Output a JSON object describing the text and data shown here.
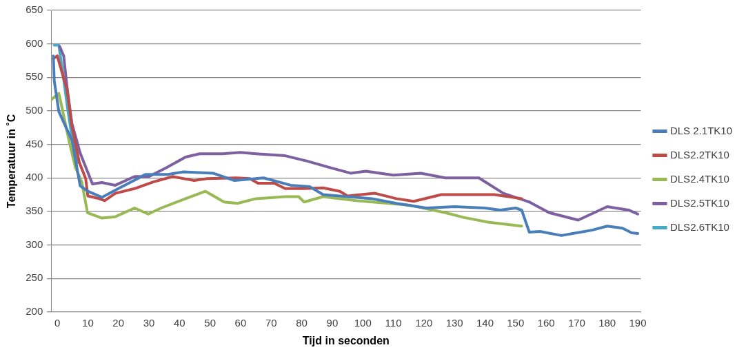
{
  "chart_data": {
    "type": "line",
    "xlabel": "Tijd in seconden",
    "ylabel": "Temperatuur in ˚C",
    "xlim": [
      -2,
      191
    ],
    "xticks": [
      0,
      10,
      20,
      30,
      40,
      50,
      60,
      70,
      80,
      90,
      100,
      110,
      120,
      130,
      140,
      150,
      160,
      170,
      180,
      190
    ],
    "ylim": [
      200,
      650
    ],
    "yticks": [
      200,
      250,
      300,
      350,
      400,
      450,
      500,
      550,
      600,
      650
    ],
    "grid": "y",
    "legend": "right",
    "marker": "none",
    "line_style": "solid",
    "series": [
      {
        "name": "DLS 2.1TK10",
        "color": "#4a7ebb",
        "x": [
          -1.3,
          -1,
          0.5,
          4.8,
          7.5,
          10,
          14.6,
          20,
          28.8,
          36,
          41.3,
          51,
          58,
          67.5,
          76.4,
          82.6,
          87,
          103,
          111,
          120.8,
          130,
          140,
          145,
          150,
          152,
          154.5,
          158,
          165,
          170,
          175,
          180,
          185,
          188,
          190
        ],
        "values": [
          582,
          545,
          499,
          456,
          388,
          380,
          371,
          384,
          405,
          405,
          409,
          407,
          396,
          400,
          389,
          387,
          375,
          369,
          362,
          355,
          357,
          355,
          352,
          355,
          352,
          319,
          320,
          314,
          318,
          322,
          328,
          325,
          318,
          317
        ]
      },
      {
        "name": "DLS2.2TK10",
        "color": "#be4b48",
        "x": [
          -1.3,
          0,
          3.2,
          4.8,
          7.2,
          9.3,
          10,
          13.7,
          15.5,
          19,
          25.3,
          31.4,
          37.8,
          44.8,
          49,
          58.6,
          63,
          65.7,
          71,
          74.6,
          80.8,
          87,
          92.5,
          95,
          104,
          111,
          116.7,
          125.7,
          143,
          152
        ],
        "values": [
          578,
          582,
          531,
          477,
          423,
          399,
          373,
          369,
          366,
          377,
          384,
          394,
          402,
          396,
          399,
          400,
          399,
          392,
          392,
          384,
          384,
          385,
          380,
          373,
          377,
          369,
          365,
          375,
          375,
          369
        ]
      },
      {
        "name": "DLS2.4TK10",
        "color": "#98b954",
        "x": [
          -1.9,
          0.5,
          1.3,
          4,
          5.9,
          8,
          9.9,
          14.6,
          19,
          25.3,
          29.8,
          34,
          42,
          48.5,
          54.6,
          59,
          65,
          74.6,
          79,
          80.8,
          87,
          97.8,
          108.5,
          115.6,
          127,
          133,
          141,
          152
        ],
        "values": [
          517,
          526,
          510,
          452,
          416,
          394,
          348,
          340,
          342,
          355,
          346,
          355,
          369,
          380,
          364,
          362,
          369,
          372,
          372,
          364,
          372,
          366,
          362,
          359,
          348,
          341,
          334,
          328
        ]
      },
      {
        "name": "DLS2.5TK10",
        "color": "#7d60a0",
        "x": [
          0.8,
          2.1,
          3.2,
          4.8,
          7.5,
          11.5,
          14.6,
          19,
          25.3,
          30,
          36,
          42,
          46.6,
          54,
          60,
          65,
          74.6,
          81.8,
          88.7,
          96,
          101,
          110,
          119,
          127,
          138,
          146,
          154.5,
          161,
          170.5,
          180,
          187,
          190
        ],
        "values": [
          596,
          582,
          535,
          481,
          437,
          391,
          393,
          389,
          402,
          402,
          416,
          431,
          436,
          436,
          438,
          436,
          433,
          425,
          416,
          407,
          410,
          404,
          407,
          400,
          400,
          377,
          364,
          348,
          337,
          357,
          352,
          346
        ]
      },
      {
        "name": "DLS2.6TK10",
        "color": "#46aac5",
        "x": [
          -1,
          0.5,
          2,
          3.5,
          5,
          6.7
        ],
        "values": [
          598,
          598,
          550,
          500,
          455,
          423
        ]
      }
    ]
  }
}
